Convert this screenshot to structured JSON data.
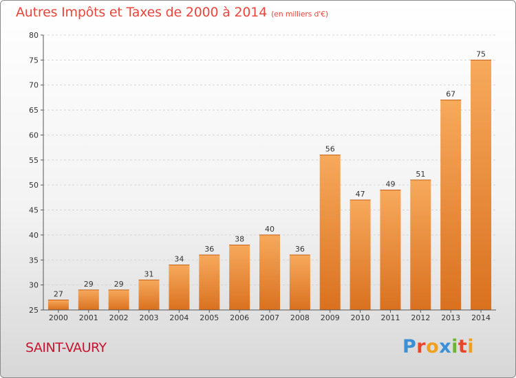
{
  "header": {
    "title": "Autres Impôts et Taxes de 2000 à 2014",
    "subtitle": "(en milliers d'€)"
  },
  "footer": {
    "place": "SAINT-VAURY",
    "logo_letters": [
      {
        "char": "P",
        "color": "#3a8fd6"
      },
      {
        "char": "r",
        "color": "#e8452c"
      },
      {
        "char": "o",
        "color": "#f0a020"
      },
      {
        "char": "x",
        "color": "#3a8fd6"
      },
      {
        "char": "i",
        "color": "#6ab82e"
      },
      {
        "char": "t",
        "color": "#e8452c"
      },
      {
        "char": "i",
        "color": "#f0a020"
      }
    ]
  },
  "chart_data": {
    "type": "bar",
    "categories": [
      "2000",
      "2001",
      "2002",
      "2003",
      "2004",
      "2005",
      "2006",
      "2007",
      "2008",
      "2009",
      "2010",
      "2011",
      "2012",
      "2013",
      "2014"
    ],
    "values": [
      27,
      29,
      29,
      31,
      34,
      36,
      38,
      40,
      36,
      56,
      47,
      49,
      51,
      67,
      75
    ],
    "ylim": [
      25,
      80
    ],
    "yticks": [
      25,
      30,
      35,
      40,
      45,
      50,
      55,
      60,
      65,
      70,
      75,
      80
    ],
    "grid": true,
    "bar_color_light": "#f7a95c",
    "bar_color_dark": "#d9711f"
  }
}
